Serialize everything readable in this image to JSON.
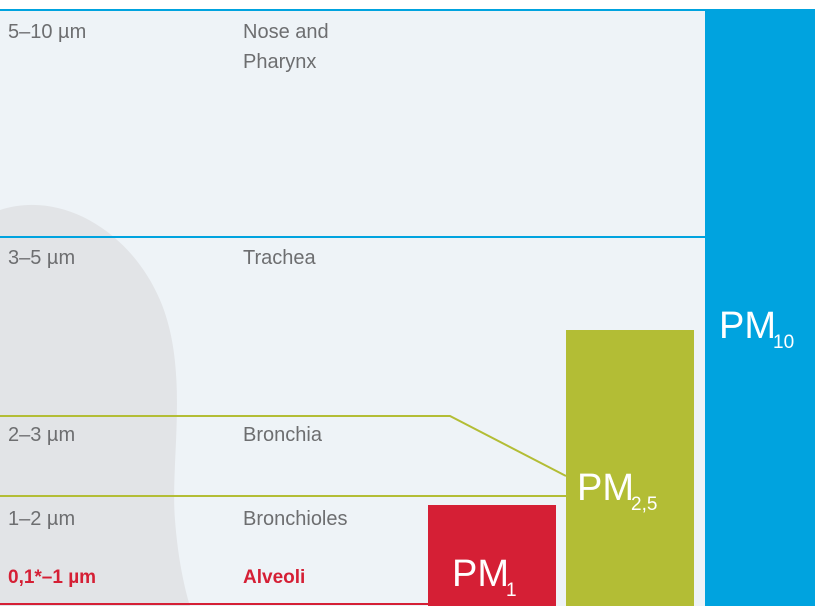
{
  "rows": [
    {
      "size": "5–10 µm",
      "region": [
        "Nose and",
        "Pharynx"
      ]
    },
    {
      "size": "3–5 µm",
      "region": [
        "Trachea"
      ]
    },
    {
      "size": "2–3 µm",
      "region": [
        "Bronchia"
      ]
    },
    {
      "size": "1–2 µm",
      "region": [
        "Bronchioles"
      ]
    },
    {
      "size": "0,1*–1 µm",
      "region": [
        "Alveoli"
      ]
    }
  ],
  "columns": [
    {
      "main": "PM",
      "sub": "10"
    },
    {
      "main": "PM",
      "sub": "2,5"
    },
    {
      "main": "PM",
      "sub": "1"
    }
  ]
}
